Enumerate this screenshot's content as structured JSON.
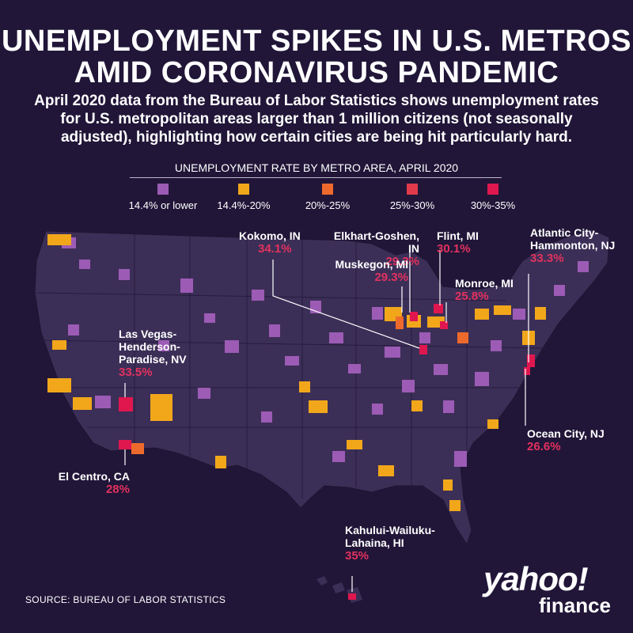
{
  "title_line1": "UNEMPLOYMENT SPIKES IN U.S. METROS",
  "title_line2": "AMID CORONAVIRUS PANDEMIC",
  "subtitle": "April 2020 data from the Bureau of Labor Statistics shows unemployment rates for U.S. metropolitan areas larger than 1 million citizens (not seasonally adjusted), highlighting how certain cities are being hit particularly hard.",
  "legend": {
    "title": "UNEMPLOYMENT RATE BY METRO AREA, APRIL 2020",
    "items": [
      {
        "label": "14.4% or lower",
        "color": "#9c5bb5"
      },
      {
        "label": "14.4%-20%",
        "color": "#f2a71b"
      },
      {
        "label": "20%-25%",
        "color": "#ee6a2c"
      },
      {
        "label": "25%-30%",
        "color": "#e23a4a"
      },
      {
        "label": "30%-35%",
        "color": "#e0174f"
      }
    ]
  },
  "map_colors": {
    "land": "#3c2f57",
    "border": "#1e1532",
    "background": "#211638",
    "highlight": "#e0174f"
  },
  "annotations": [
    {
      "name": "Kokomo, IN",
      "value": "34.1%"
    },
    {
      "name": "Elkhart-Goshen, IN",
      "value": "29.3%"
    },
    {
      "name": "Flint, MI",
      "value": "30.1%"
    },
    {
      "name": "Atlantic City-",
      "name2": "Hammonton, NJ",
      "value": "33.3%"
    },
    {
      "name": "Muskegon, MI",
      "value": "29.3%"
    },
    {
      "name": "Monroe, MI",
      "value": "25.8%"
    },
    {
      "name": "Las Vegas-",
      "name2": "Henderson-",
      "name3": "Paradise, NV",
      "value": "33.5%"
    },
    {
      "name": "Ocean City, NJ",
      "value": "26.6%"
    },
    {
      "name": "El Centro, CA",
      "value": "28%"
    },
    {
      "name": "Kahului-Wailuku-",
      "name2": "Lahaina, HI",
      "value": "35%"
    }
  ],
  "source": "SOURCE: BUREAU OF LABOR STATISTICS",
  "logo": {
    "line1": "yahoo!",
    "line2": "finance"
  }
}
